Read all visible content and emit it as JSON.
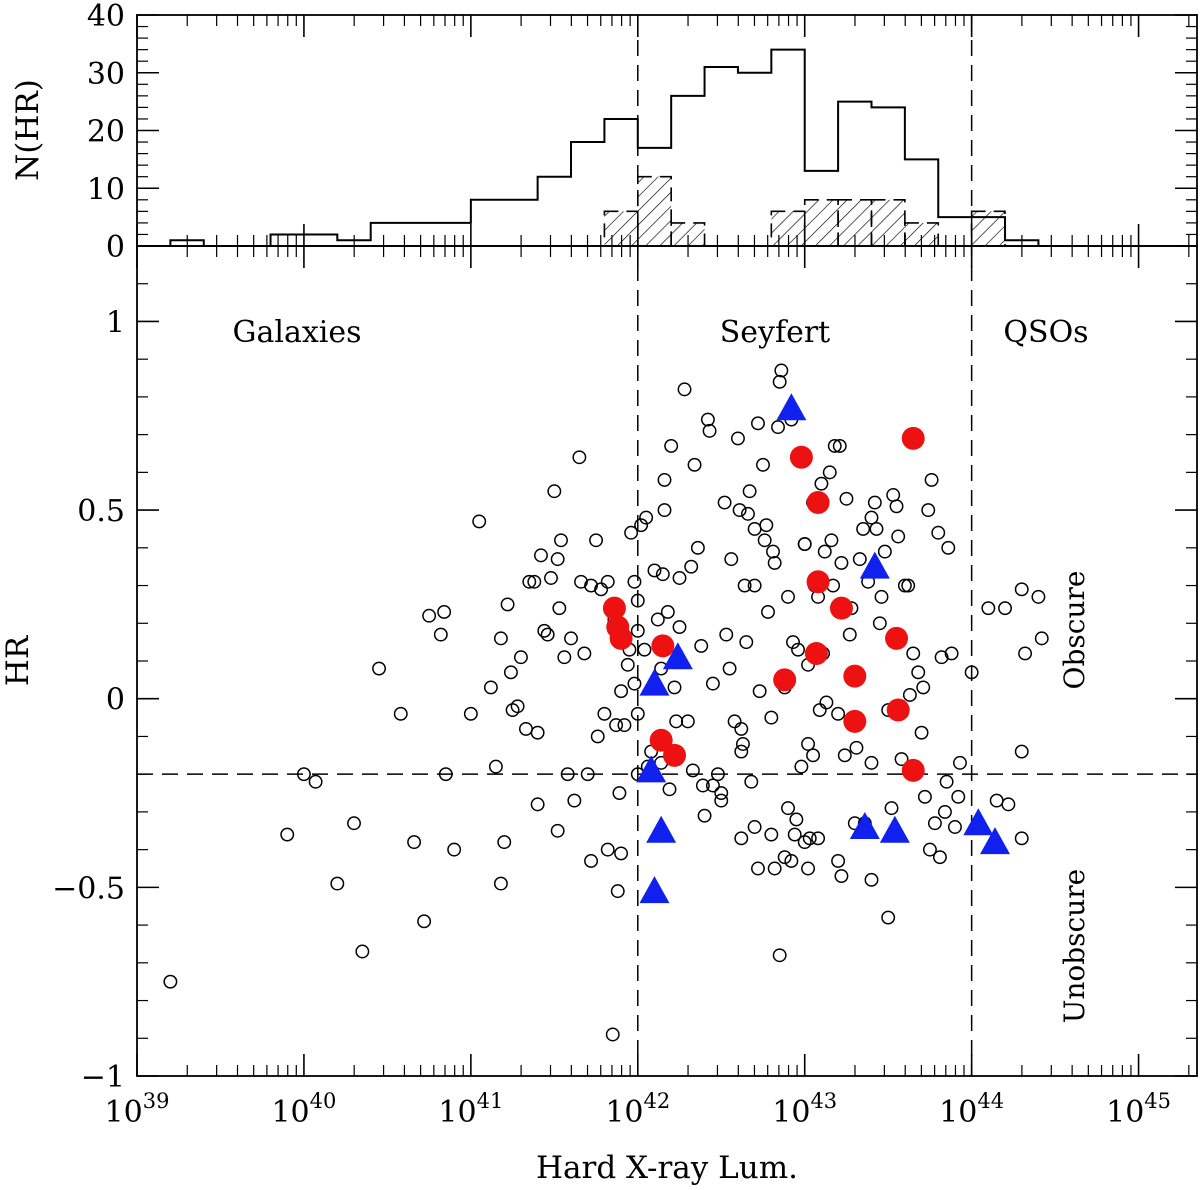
{
  "chart_data": [
    {
      "type": "histogram",
      "panel": "top",
      "ylabel": "N(HR)",
      "ylim": [
        0,
        40
      ],
      "y_ticks": [
        0,
        10,
        20,
        30,
        40
      ],
      "bins_log_edges": [
        39.2,
        39.4,
        39.6,
        39.8,
        40.0,
        40.2,
        40.4,
        40.6,
        40.8,
        41.0,
        41.2,
        41.4,
        41.6,
        41.8,
        42.0,
        42.2,
        42.4,
        42.6,
        42.8,
        43.0,
        43.2,
        43.4,
        43.6,
        43.8,
        44.0,
        44.2,
        44.4,
        44.6
      ],
      "all_counts": [
        1,
        0,
        0,
        2,
        2,
        1,
        4,
        4,
        4,
        8,
        8,
        12,
        18,
        22,
        17,
        26,
        31,
        30,
        34,
        13,
        25,
        24,
        15,
        5,
        5,
        1,
        0
      ],
      "obscure_bins_log_edges": [
        41.8,
        42.0,
        42.2,
        42.4,
        42.6,
        42.8,
        43.0,
        43.2,
        43.4,
        43.6,
        43.8,
        44.0,
        44.2
      ],
      "obscure_counts": [
        6,
        12,
        4,
        0,
        0,
        6,
        8,
        8,
        8,
        4,
        0,
        6
      ]
    },
    {
      "type": "scatter",
      "panel": "bottom",
      "xlabel": "Hard X-ray Lum.",
      "ylabel": "HR",
      "x_scale": "log",
      "xlim_log": [
        39.0,
        45.35
      ],
      "ylim": [
        -1.0,
        1.2
      ],
      "x_tick_labels": [
        {
          "base": "10",
          "exp": "39"
        },
        {
          "base": "10",
          "exp": "40"
        },
        {
          "base": "10",
          "exp": "41"
        },
        {
          "base": "10",
          "exp": "42"
        },
        {
          "base": "10",
          "exp": "43"
        },
        {
          "base": "10",
          "exp": "44"
        },
        {
          "base": "10",
          "exp": "45"
        }
      ],
      "y_tick_labels": [
        "1",
        "0.5",
        "0",
        "−0.5",
        "−1"
      ],
      "y_tick_values": [
        1,
        0.5,
        0,
        -0.5,
        -1
      ],
      "region_labels": {
        "galaxies": "Galaxies",
        "seyfert": "Seyfert",
        "qsos": "QSOs"
      },
      "class_labels": {
        "obscure": "Obscure",
        "unobscure": "Unobscure"
      },
      "colors": {
        "obscure": "#ee1111",
        "unobscure": "#1020ee",
        "points": "#000000"
      },
      "dividers_log_lum": [
        42.0,
        44.0
      ],
      "hr_threshold": -0.2,
      "open_points_logL_HR": [
        [
          39.2,
          -0.75
        ],
        [
          39.9,
          -0.36
        ],
        [
          40.0,
          -0.2
        ],
        [
          40.07,
          -0.22
        ],
        [
          40.2,
          -0.49
        ],
        [
          40.35,
          -0.67
        ],
        [
          40.3,
          -0.33
        ],
        [
          40.45,
          0.08
        ],
        [
          40.58,
          -0.04
        ],
        [
          40.66,
          -0.38
        ],
        [
          40.72,
          -0.59
        ],
        [
          40.75,
          0.22
        ],
        [
          40.82,
          0.17
        ],
        [
          40.84,
          0.23
        ],
        [
          40.85,
          -0.2
        ],
        [
          40.9,
          -0.4
        ],
        [
          41.0,
          -0.04
        ],
        [
          41.05,
          0.47
        ],
        [
          41.12,
          0.03
        ],
        [
          41.15,
          -0.18
        ],
        [
          41.18,
          0.16
        ],
        [
          41.18,
          -0.49
        ],
        [
          41.2,
          -0.38
        ],
        [
          41.22,
          0.25
        ],
        [
          41.24,
          0.07
        ],
        [
          41.25,
          -0.03
        ],
        [
          41.28,
          -0.02
        ],
        [
          41.3,
          0.11
        ],
        [
          41.33,
          -0.08
        ],
        [
          41.35,
          0.31
        ],
        [
          41.38,
          0.31
        ],
        [
          41.4,
          -0.28
        ],
        [
          41.4,
          -0.09
        ],
        [
          41.42,
          0.38
        ],
        [
          41.44,
          0.18
        ],
        [
          41.46,
          0.17
        ],
        [
          41.48,
          0.32
        ],
        [
          41.5,
          0.55
        ],
        [
          41.52,
          0.37
        ],
        [
          41.52,
          -0.35
        ],
        [
          41.53,
          0.24
        ],
        [
          41.54,
          0.42
        ],
        [
          41.56,
          0.11
        ],
        [
          41.58,
          -0.2
        ],
        [
          41.6,
          0.16
        ],
        [
          41.62,
          -0.27
        ],
        [
          41.65,
          0.64
        ],
        [
          41.66,
          0.31
        ],
        [
          41.68,
          0.12
        ],
        [
          41.7,
          -0.2
        ],
        [
          41.72,
          0.3
        ],
        [
          41.72,
          -0.43
        ],
        [
          41.75,
          0.42
        ],
        [
          41.76,
          -0.1
        ],
        [
          41.78,
          0.29
        ],
        [
          41.8,
          -0.04
        ],
        [
          41.82,
          0.31
        ],
        [
          41.82,
          -0.4
        ],
        [
          41.85,
          -0.89
        ],
        [
          41.86,
          0.21
        ],
        [
          41.87,
          -0.07
        ],
        [
          41.88,
          -0.51
        ],
        [
          41.89,
          -0.25
        ],
        [
          41.9,
          -0.41
        ],
        [
          41.9,
          0.02
        ],
        [
          41.92,
          -0.07
        ],
        [
          41.94,
          0.09
        ],
        [
          41.95,
          0.13
        ],
        [
          41.96,
          0.44
        ],
        [
          41.98,
          0.31
        ],
        [
          41.98,
          0.04
        ],
        [
          42.0,
          0.18
        ],
        [
          42.0,
          0.26
        ],
        [
          42.0,
          -0.2
        ],
        [
          42.0,
          -0.04
        ],
        [
          42.02,
          0.46
        ],
        [
          42.04,
          0.13
        ],
        [
          42.05,
          0.48
        ],
        [
          42.06,
          -0.18
        ],
        [
          42.08,
          -0.14
        ],
        [
          42.1,
          0.34
        ],
        [
          42.12,
          0.21
        ],
        [
          42.14,
          -0.17
        ],
        [
          42.14,
          0.08
        ],
        [
          42.15,
          0.33
        ],
        [
          42.16,
          0.5
        ],
        [
          42.16,
          0.58
        ],
        [
          42.18,
          0.23
        ],
        [
          42.19,
          -0.24
        ],
        [
          42.2,
          0.67
        ],
        [
          42.22,
          0.03
        ],
        [
          42.23,
          -0.06
        ],
        [
          42.25,
          0.19
        ],
        [
          42.25,
          0.32
        ],
        [
          42.28,
          0.82
        ],
        [
          42.3,
          -0.06
        ],
        [
          42.32,
          0.35
        ],
        [
          42.33,
          -0.19
        ],
        [
          42.34,
          0.62
        ],
        [
          42.36,
          0.4
        ],
        [
          42.38,
          0.14
        ],
        [
          42.39,
          -0.23
        ],
        [
          42.4,
          -0.31
        ],
        [
          42.42,
          0.74
        ],
        [
          42.43,
          0.71
        ],
        [
          42.45,
          0.04
        ],
        [
          42.45,
          -0.23
        ],
        [
          42.48,
          -0.2
        ],
        [
          42.5,
          -0.25
        ],
        [
          42.5,
          -0.27
        ],
        [
          42.52,
          0.52
        ],
        [
          42.53,
          0.17
        ],
        [
          42.55,
          0.08
        ],
        [
          42.56,
          0.37
        ],
        [
          42.58,
          -0.06
        ],
        [
          42.6,
          0.69
        ],
        [
          42.61,
          0.5
        ],
        [
          42.62,
          -0.14
        ],
        [
          42.64,
          0.3
        ],
        [
          42.65,
          0.15
        ],
        [
          42.66,
          0.49
        ],
        [
          42.67,
          0.55
        ],
        [
          42.68,
          -0.22
        ],
        [
          42.7,
          0.45
        ],
        [
          42.7,
          0.3
        ],
        [
          42.72,
          0.73
        ],
        [
          42.73,
          0.02
        ],
        [
          42.75,
          0.62
        ],
        [
          42.76,
          0.42
        ],
        [
          42.77,
          0.46
        ],
        [
          42.78,
          0.23
        ],
        [
          42.8,
          -0.05
        ],
        [
          42.81,
          0.39
        ],
        [
          42.82,
          0.36
        ],
        [
          42.84,
          0.72
        ],
        [
          42.85,
          0.84
        ],
        [
          42.86,
          0.87
        ],
        [
          42.88,
          0.03
        ],
        [
          42.9,
          -0.29
        ],
        [
          42.9,
          0.27
        ],
        [
          42.92,
          -0.43
        ],
        [
          42.92,
          0.74
        ],
        [
          42.93,
          0.15
        ],
        [
          42.95,
          -0.32
        ],
        [
          42.96,
          0.13
        ],
        [
          42.98,
          -0.18
        ],
        [
          43.0,
          0.41
        ],
        [
          43.0,
          0.41
        ],
        [
          43.02,
          0.09
        ],
        [
          43.03,
          -0.37
        ],
        [
          43.05,
          0.52
        ],
        [
          43.05,
          0.52
        ],
        [
          43.06,
          0.3
        ],
        [
          43.08,
          0.27
        ],
        [
          43.09,
          -0.03
        ],
        [
          43.1,
          0.57
        ],
        [
          43.11,
          0.12
        ],
        [
          43.12,
          0.39
        ],
        [
          43.13,
          -0.01
        ],
        [
          43.15,
          0.6
        ],
        [
          43.16,
          0.42
        ],
        [
          43.17,
          0.3
        ],
        [
          43.18,
          0.67
        ],
        [
          43.2,
          -0.04
        ],
        [
          43.21,
          0.67
        ],
        [
          43.22,
          0.36
        ],
        [
          43.24,
          -0.15
        ],
        [
          43.25,
          0.53
        ],
        [
          43.27,
          0.17
        ],
        [
          43.28,
          0.24
        ],
        [
          43.3,
          -0.33
        ],
        [
          43.31,
          -0.13
        ],
        [
          43.33,
          0.37
        ],
        [
          43.35,
          0.45
        ],
        [
          43.36,
          -0.33
        ],
        [
          43.38,
          0.31
        ],
        [
          43.4,
          0.48
        ],
        [
          43.4,
          -0.17
        ],
        [
          43.42,
          0.52
        ],
        [
          43.43,
          0.45
        ],
        [
          43.45,
          0.2
        ],
        [
          43.46,
          0.27
        ],
        [
          43.48,
          0.39
        ],
        [
          43.5,
          -0.03
        ],
        [
          43.52,
          -0.29
        ],
        [
          43.53,
          0.54
        ],
        [
          43.55,
          0.51
        ],
        [
          43.56,
          0.43
        ],
        [
          43.58,
          -0.16
        ],
        [
          43.6,
          0.3
        ],
        [
          43.62,
          0.3
        ],
        [
          43.63,
          0.01
        ],
        [
          43.65,
          0.12
        ],
        [
          43.66,
          -0.2
        ],
        [
          43.68,
          0.07
        ],
        [
          43.7,
          -0.09
        ],
        [
          43.71,
          0.03
        ],
        [
          43.72,
          -0.26
        ],
        [
          43.74,
          0.5
        ],
        [
          43.75,
          -0.4
        ],
        [
          43.76,
          0.58
        ],
        [
          43.78,
          -0.33
        ],
        [
          43.8,
          0.44
        ],
        [
          43.81,
          -0.42
        ],
        [
          43.82,
          0.11
        ],
        [
          43.84,
          -0.3
        ],
        [
          43.85,
          -0.22
        ],
        [
          43.86,
          0.4
        ],
        [
          43.88,
          0.12
        ],
        [
          43.9,
          -0.34
        ],
        [
          43.92,
          -0.26
        ],
        [
          43.93,
          -0.17
        ],
        [
          44.0,
          0.07
        ],
        [
          44.1,
          0.24
        ],
        [
          44.15,
          -0.27
        ],
        [
          44.2,
          0.24
        ],
        [
          44.22,
          -0.28
        ],
        [
          44.3,
          0.29
        ],
        [
          44.3,
          -0.14
        ],
        [
          44.32,
          0.12
        ],
        [
          44.4,
          0.27
        ],
        [
          44.42,
          0.16
        ],
        [
          44.3,
          -0.37
        ],
        [
          42.62,
          -0.37
        ],
        [
          42.7,
          -0.34
        ],
        [
          42.8,
          -0.36
        ],
        [
          42.88,
          -0.42
        ],
        [
          42.94,
          -0.36
        ],
        [
          43.0,
          -0.38
        ],
        [
          43.02,
          -0.45
        ],
        [
          43.08,
          -0.37
        ],
        [
          43.2,
          -0.43
        ],
        [
          43.22,
          -0.47
        ],
        [
          43.4,
          -0.48
        ],
        [
          43.5,
          -0.58
        ],
        [
          42.72,
          -0.45
        ],
        [
          42.82,
          -0.45
        ],
        [
          42.85,
          -0.68
        ],
        [
          42.62,
          -0.08
        ],
        [
          42.63,
          -0.12
        ],
        [
          43.02,
          -0.12
        ],
        [
          43.05,
          -0.15
        ]
      ],
      "obscure_points_logL_HR": [
        [
          41.86,
          0.24
        ],
        [
          41.88,
          0.19
        ],
        [
          41.9,
          0.16
        ],
        [
          42.15,
          0.14
        ],
        [
          42.14,
          -0.11
        ],
        [
          42.22,
          -0.15
        ],
        [
          42.88,
          0.05
        ],
        [
          42.98,
          0.64
        ],
        [
          43.07,
          0.12
        ],
        [
          43.08,
          0.52
        ],
        [
          43.08,
          0.31
        ],
        [
          43.22,
          0.24
        ],
        [
          43.3,
          0.06
        ],
        [
          43.3,
          -0.06
        ],
        [
          43.55,
          0.16
        ],
        [
          43.56,
          -0.03
        ],
        [
          43.65,
          0.69
        ],
        [
          43.65,
          -0.19
        ]
      ],
      "unobscure_points_logL_HR": [
        [
          42.1,
          0.04
        ],
        [
          42.24,
          0.11
        ],
        [
          42.08,
          -0.19
        ],
        [
          42.14,
          -0.35
        ],
        [
          42.1,
          -0.51
        ],
        [
          42.92,
          0.77
        ],
        [
          43.42,
          0.35
        ],
        [
          43.36,
          -0.34
        ],
        [
          43.54,
          -0.35
        ],
        [
          44.04,
          -0.33
        ],
        [
          44.14,
          -0.38
        ]
      ]
    }
  ]
}
